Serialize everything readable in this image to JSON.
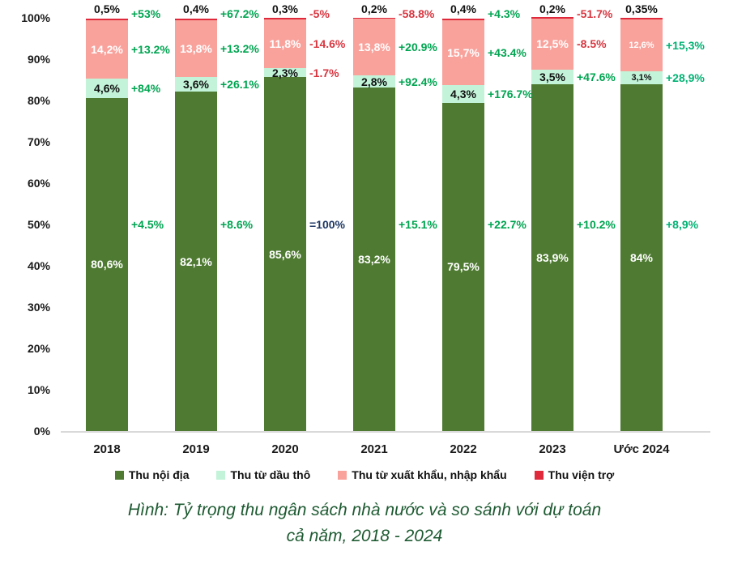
{
  "chart_data": {
    "type": "bar",
    "variant": "stacked-100",
    "y_ticks": [
      "0%",
      "10%",
      "20%",
      "30%",
      "40%",
      "50%",
      "60%",
      "70%",
      "80%",
      "90%",
      "100%"
    ],
    "ylim": [
      0,
      100
    ],
    "grid": false,
    "legend_position": "bottom",
    "axis_line_color": "#d9d9d9",
    "categories": [
      "2018",
      "2019",
      "2020",
      "2021",
      "2022",
      "2023",
      "Ước 2024"
    ],
    "series": [
      {
        "name": "Thu nội địa",
        "key": "thu-noi-dia",
        "color": "#4e7a31",
        "label_style": "inside",
        "label_color": "#ffffff",
        "comp_anchor": "mid",
        "values": [
          80.6,
          82.1,
          85.6,
          83.2,
          79.5,
          83.9,
          84
        ],
        "value_labels": [
          "80,6%",
          "82,1%",
          "85,6%",
          "83,2%",
          "79,5%",
          "83,9%",
          "84%"
        ],
        "small_label_indices": [],
        "comparisons": [
          "+4.5%",
          "+8.6%",
          "=100%",
          "+15.1%",
          "+22.7%",
          "+10.2%",
          "+8,9%"
        ],
        "comparison_colors": [
          "green",
          "green",
          "blue",
          "green",
          "green",
          "green",
          "green2"
        ]
      },
      {
        "name": "Thu từ dầu thô",
        "key": "thu-tu-dau-tho",
        "color": "#c3f4d9",
        "label_style": "inside",
        "label_color": "#111111",
        "comp_anchor": "segment",
        "values": [
          4.6,
          3.6,
          2.3,
          2.8,
          4.3,
          3.5,
          3.1
        ],
        "value_labels": [
          "4,6%",
          "3,6%",
          "2,3%",
          "2,8%",
          "4,3%",
          "3,5%",
          "3,1%"
        ],
        "small_label_indices": [
          6
        ],
        "comparisons": [
          "+84%",
          "+26.1%",
          "-1.7%",
          "+92.4%",
          "+176.7%",
          "+47.6%",
          "+28,9%"
        ],
        "comparison_colors": [
          "green",
          "green",
          "red",
          "green",
          "green",
          "green",
          "green2"
        ]
      },
      {
        "name": "Thu từ xuất khẩu, nhập khẩu",
        "key": "thu-tu-xuat-nhap-khau",
        "color": "#f9a29c",
        "label_style": "inside",
        "label_color": "#ffffff",
        "comp_anchor": "segment",
        "values": [
          14.2,
          13.8,
          11.8,
          13.8,
          15.7,
          12.5,
          12.6
        ],
        "value_labels": [
          "14,2%",
          "13,8%",
          "11,8%",
          "13,8%",
          "15,7%",
          "12,5%",
          "12,6%"
        ],
        "small_label_indices": [
          6
        ],
        "comparisons": [
          "+13.2%",
          "+13.2%",
          "-14.6%",
          "+20.9%",
          "+43.4%",
          "-8.5%",
          "+15,3%"
        ],
        "comparison_colors": [
          "green",
          "green",
          "red",
          "green",
          "green",
          "red",
          "green2"
        ]
      },
      {
        "name": "Thu viện trợ",
        "key": "thu-vien-tro",
        "color": "#e0293a",
        "label_style": "above",
        "label_color": "#111111",
        "comp_anchor": "top",
        "values": [
          0.5,
          0.4,
          0.3,
          0.2,
          0.4,
          0.2,
          0.35
        ],
        "value_labels": [
          "0,5%",
          "0,4%",
          "0,3%",
          "0,2%",
          "0,4%",
          "0,2%",
          "0,35%"
        ],
        "small_label_indices": [],
        "comparisons": [
          "+53%",
          "+67.2%",
          "-5%",
          "-58.8%",
          "+4.3%",
          "-51.7%",
          ""
        ],
        "comparison_colors": [
          "green",
          "green",
          "red",
          "red",
          "green",
          "red",
          ""
        ]
      }
    ],
    "comparison_palette": {
      "green": "#00a551",
      "green2": "#00b274",
      "red": "#d8353f",
      "blue": "#1f3864"
    }
  },
  "legend": {
    "items": [
      {
        "label": "Thu nội địa",
        "color": "#4e7a31"
      },
      {
        "label": "Thu từ dầu thô",
        "color": "#c3f4d9"
      },
      {
        "label": "Thu từ xuất khẩu, nhập khẩu",
        "color": "#f9a29c"
      },
      {
        "label": "Thu viện trợ",
        "color": "#e0293a"
      }
    ]
  },
  "caption": {
    "line1": "Hình: Tỷ trọng thu ngân sách nhà nước và so sánh với dự toán",
    "line2": "cả năm, 2018 - 2024"
  }
}
